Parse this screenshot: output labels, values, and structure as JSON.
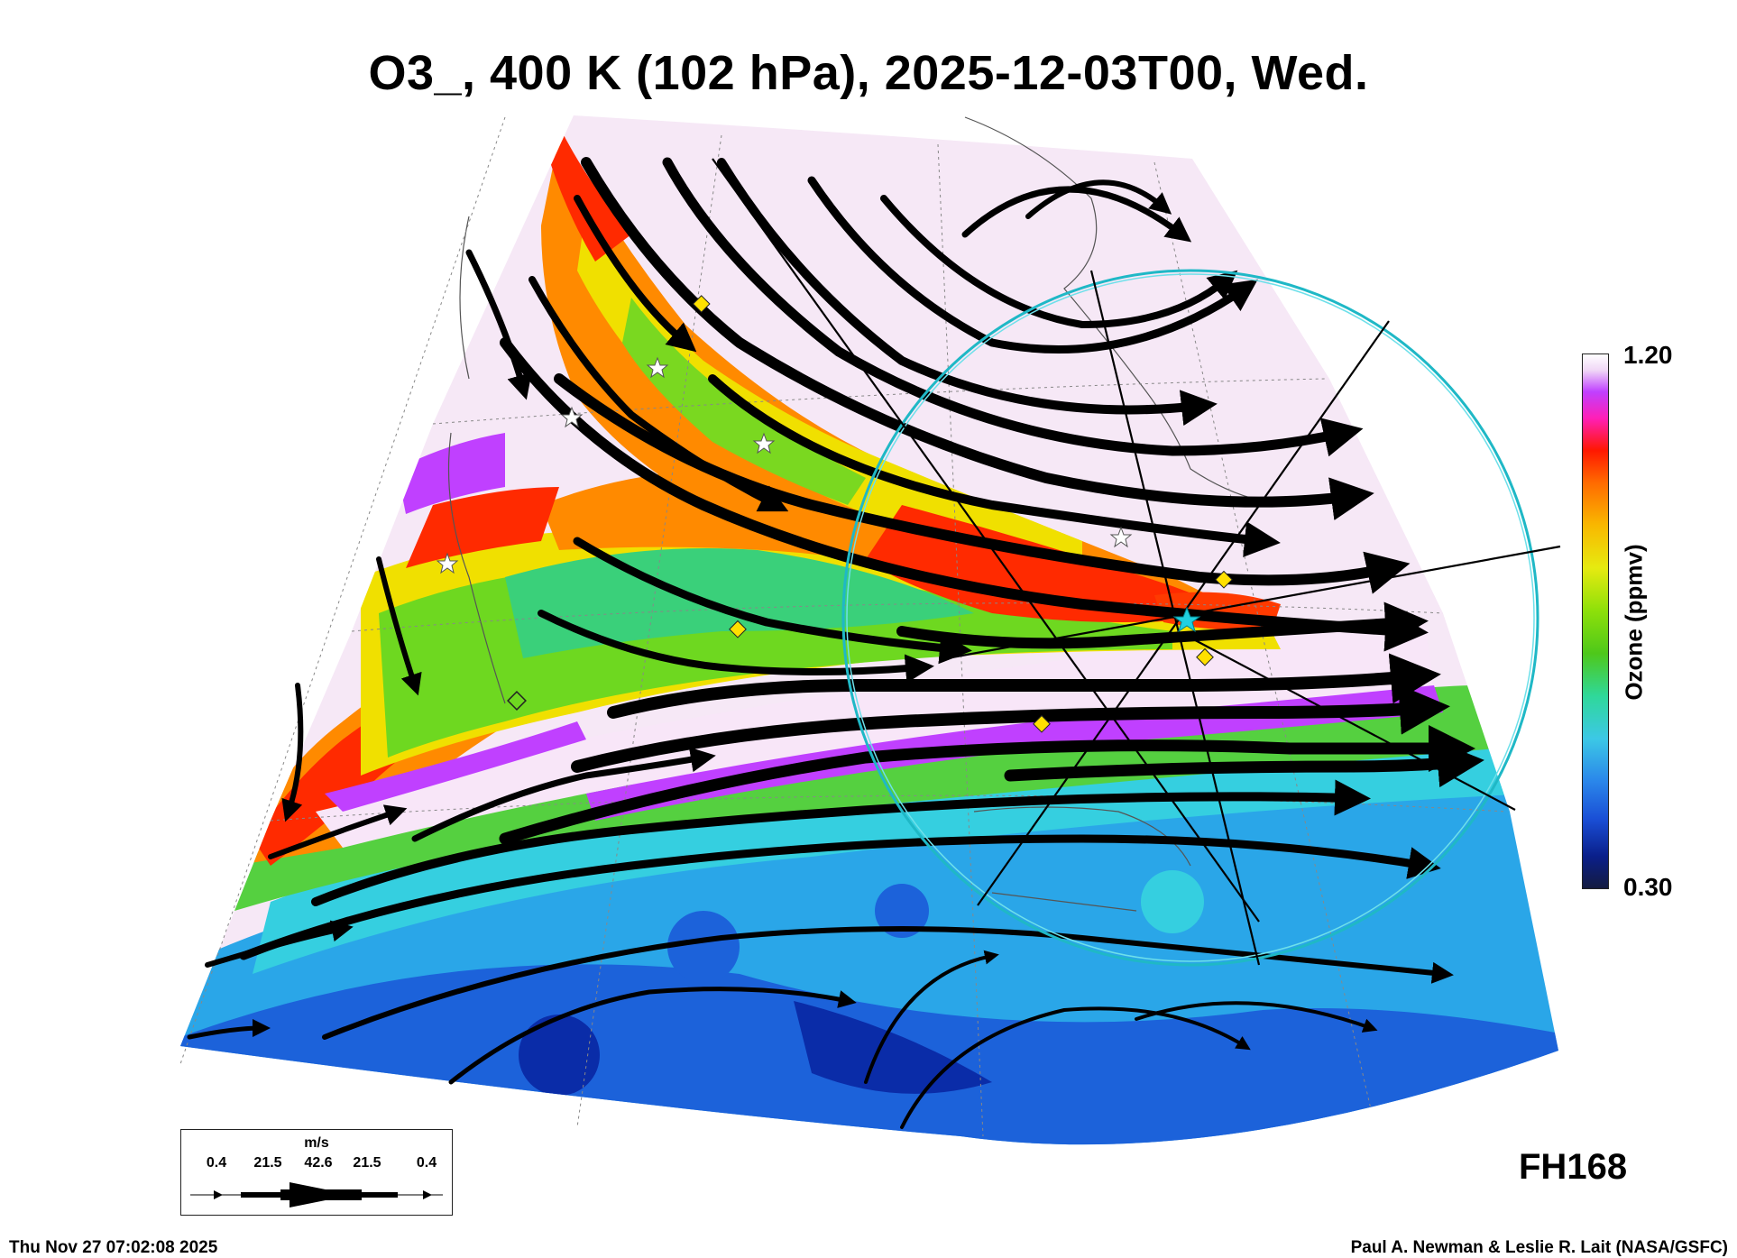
{
  "title": "O3_, 400 K (102 hPa), 2025-12-03T00, Wed.",
  "colorbar": {
    "label": "Ozone (ppmv)",
    "max": "1.20",
    "min": "0.30"
  },
  "forecast_hour": "FH168",
  "timestamp": "Thu Nov 27 07:02:08 2025",
  "credit": "Paul A. Newman & Leslie R. Lait (NASA/GSFC)",
  "wind_legend": {
    "unit": "m/s",
    "values": [
      "0.4",
      "21.5",
      "42.6",
      "21.5",
      "0.4"
    ]
  },
  "colors": {
    "ozone_high": "#f4e6f4",
    "ozone_purple": "#c040ff",
    "ozone_red": "#ff1800",
    "ozone_orange": "#ff8000",
    "ozone_yellow": "#f0e000",
    "ozone_green": "#60d020",
    "ozone_cyan": "#30c8e0",
    "ozone_blue": "#1a50d8",
    "circle": "#20b8c8"
  }
}
